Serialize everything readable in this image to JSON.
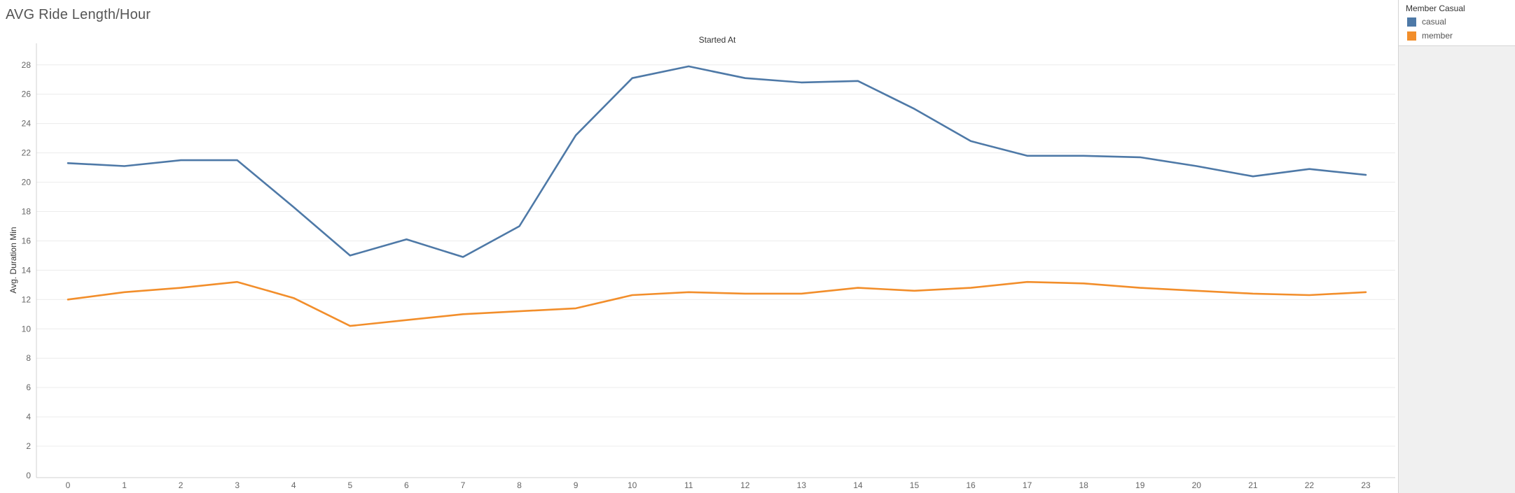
{
  "sheet": {
    "title": "AVG Ride Length/Hour"
  },
  "legend": {
    "title": "Member Casual",
    "items": [
      {
        "label": "casual",
        "color": "#4e79a7"
      },
      {
        "label": "member",
        "color": "#f28e2b"
      }
    ]
  },
  "chart_data": {
    "type": "line",
    "title": "",
    "xlabel": "Started At",
    "ylabel": "Avg. Duration Min",
    "x": [
      0,
      1,
      2,
      3,
      4,
      5,
      6,
      7,
      8,
      9,
      10,
      11,
      12,
      13,
      14,
      15,
      16,
      17,
      18,
      19,
      20,
      21,
      22,
      23
    ],
    "y_ticks": [
      0,
      2,
      4,
      6,
      8,
      10,
      12,
      14,
      16,
      18,
      20,
      22,
      24,
      26,
      28
    ],
    "ylim": [
      0,
      28.8
    ],
    "grid": true,
    "legend_position": "right",
    "series": [
      {
        "name": "casual",
        "color": "#4e79a7",
        "values": [
          21.3,
          21.1,
          21.5,
          21.5,
          18.3,
          15.0,
          16.1,
          14.9,
          17.0,
          23.2,
          27.1,
          27.9,
          27.1,
          26.8,
          26.9,
          25.0,
          22.8,
          21.8,
          21.8,
          21.7,
          21.1,
          20.4,
          20.9,
          20.5
        ]
      },
      {
        "name": "member",
        "color": "#f28e2b",
        "values": [
          12.0,
          12.5,
          12.8,
          13.2,
          12.1,
          10.2,
          10.6,
          11.0,
          11.2,
          11.4,
          12.3,
          12.5,
          12.4,
          12.4,
          12.8,
          12.6,
          12.8,
          13.2,
          13.1,
          12.8,
          12.6,
          12.4,
          12.3,
          12.5
        ]
      }
    ]
  }
}
